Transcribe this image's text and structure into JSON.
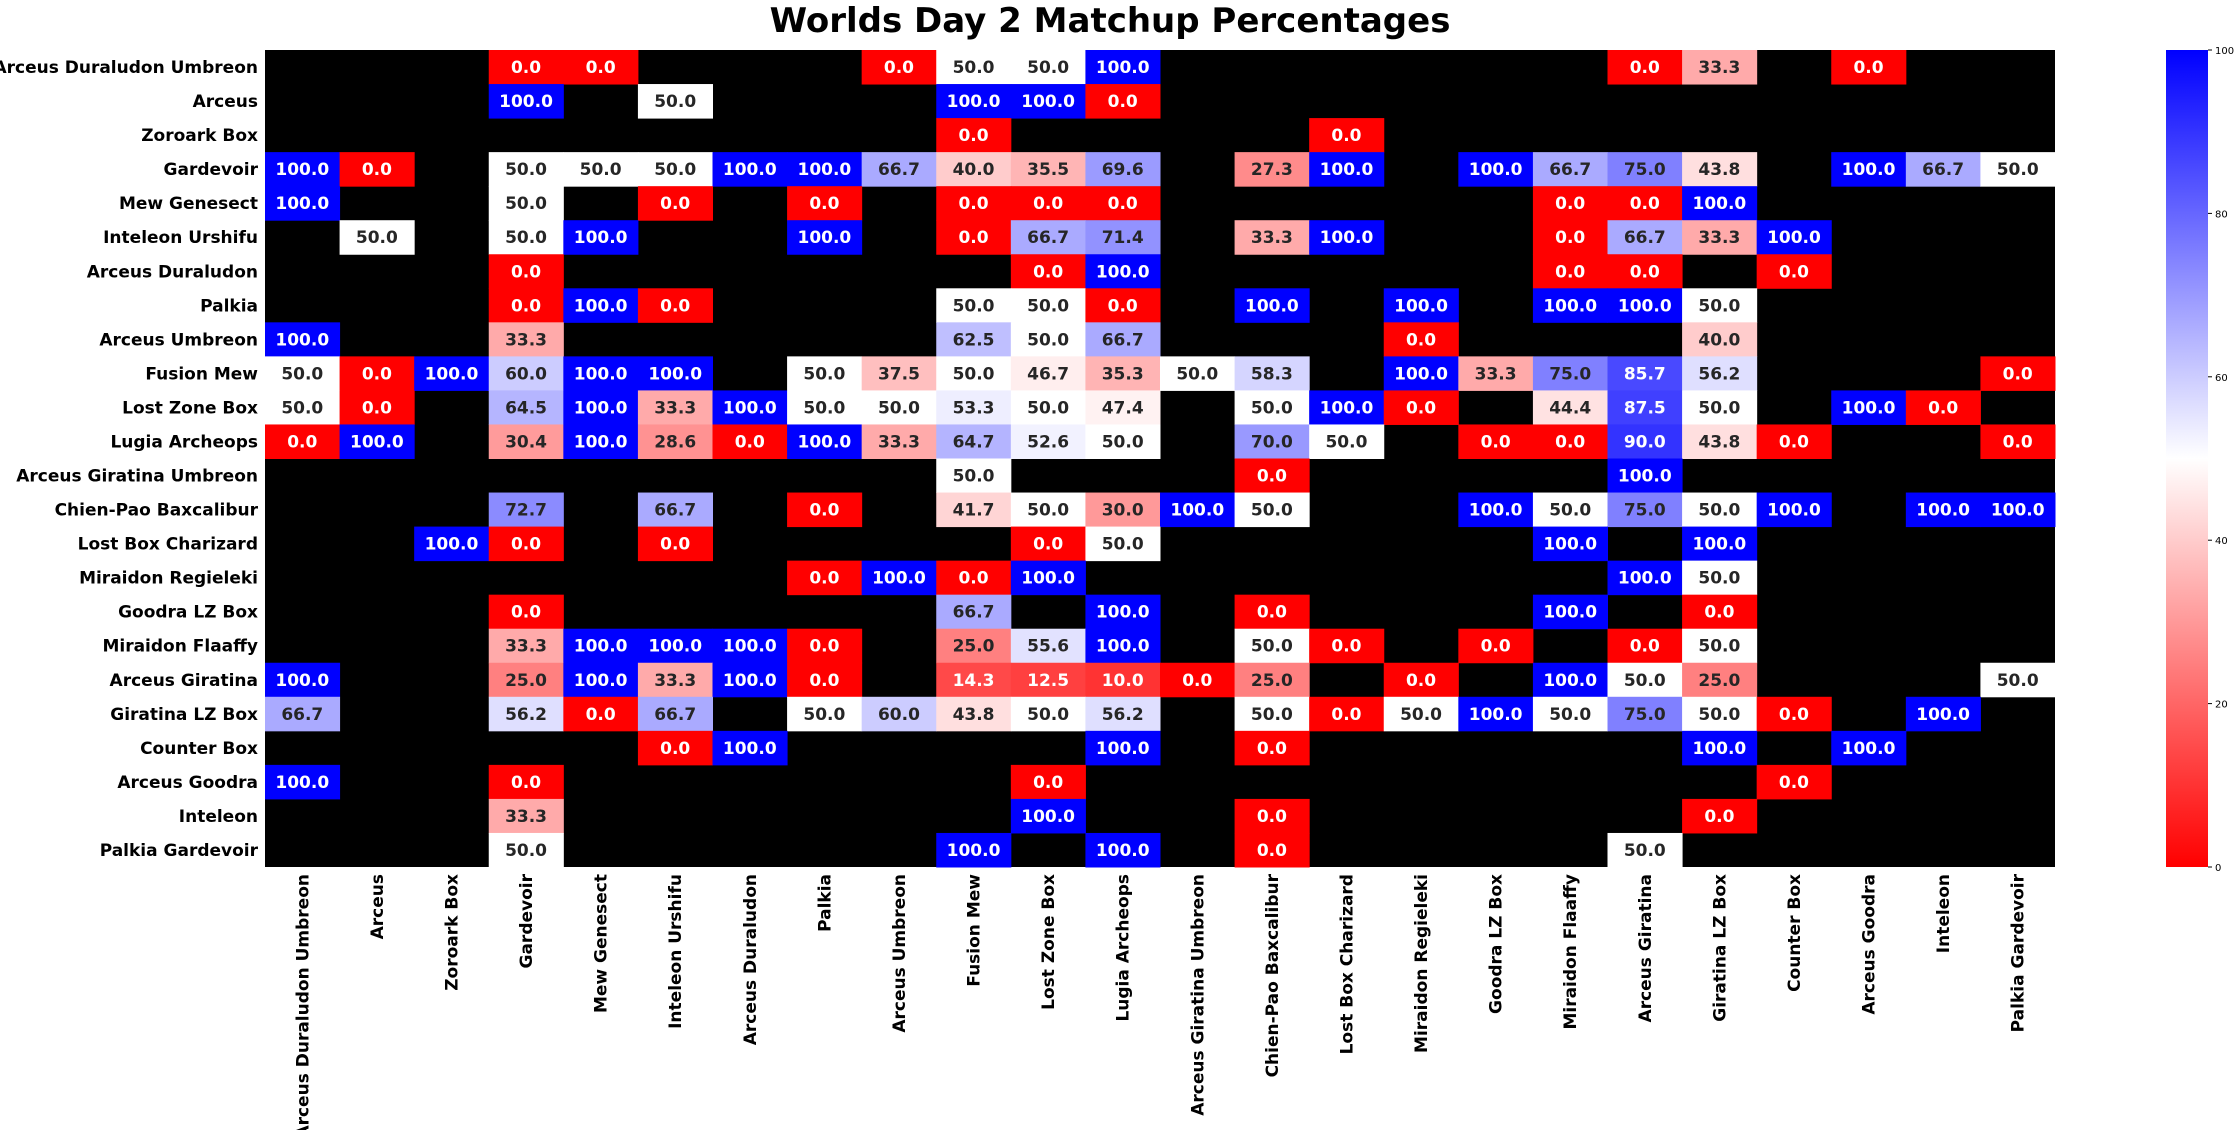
{
  "chart_data": {
    "type": "heatmap",
    "title": "Worlds Day 2 Matchup Percentages",
    "rows": [
      "Arceus Duraludon Umbreon",
      "Arceus",
      "Zoroark Box",
      "Gardevoir",
      "Mew Genesect",
      "Inteleon Urshifu",
      "Arceus Duraludon",
      "Palkia",
      "Arceus Umbreon",
      "Fusion Mew",
      "Lost Zone Box",
      "Lugia Archeops",
      "Arceus Giratina Umbreon",
      "Chien-Pao Baxcalibur",
      "Lost Box Charizard",
      "Miraidon Regieleki",
      "Goodra LZ Box",
      "Miraidon Flaaffy",
      "Arceus Giratina",
      "Giratina LZ Box",
      "Counter Box",
      "Arceus Goodra",
      "Inteleon",
      "Palkia Gardevoir"
    ],
    "columns": [
      "Arceus Duraludon Umbreon",
      "Arceus",
      "Zoroark Box",
      "Gardevoir",
      "Mew Genesect",
      "Inteleon Urshifu",
      "Arceus Duraludon",
      "Palkia",
      "Arceus Umbreon",
      "Fusion Mew",
      "Lost Zone Box",
      "Lugia Archeops",
      "Arceus Giratina Umbreon",
      "Chien-Pao Baxcalibur",
      "Lost Box Charizard",
      "Miraidon Regieleki",
      "Goodra LZ Box",
      "Miraidon Flaaffy",
      "Arceus Giratina",
      "Giratina LZ Box",
      "Counter Box",
      "Arceus Goodra",
      "Inteleon",
      "Palkia Gardevoir"
    ],
    "values": [
      [
        null,
        null,
        null,
        0.0,
        0.0,
        null,
        null,
        null,
        0.0,
        50.0,
        50.0,
        100.0,
        null,
        null,
        null,
        null,
        null,
        null,
        0.0,
        33.3,
        null,
        0.0,
        null,
        null
      ],
      [
        null,
        null,
        null,
        100.0,
        null,
        50.0,
        null,
        null,
        null,
        100.0,
        100.0,
        0.0,
        null,
        null,
        null,
        null,
        null,
        null,
        null,
        null,
        null,
        null,
        null,
        null
      ],
      [
        null,
        null,
        null,
        null,
        null,
        null,
        null,
        null,
        null,
        0.0,
        null,
        null,
        null,
        null,
        0.0,
        null,
        null,
        null,
        null,
        null,
        null,
        null,
        null,
        null
      ],
      [
        100.0,
        0.0,
        null,
        50.0,
        50.0,
        50.0,
        100.0,
        100.0,
        66.7,
        40.0,
        35.5,
        69.6,
        null,
        27.3,
        100.0,
        null,
        100.0,
        66.7,
        75.0,
        43.8,
        null,
        100.0,
        66.7,
        50.0
      ],
      [
        100.0,
        null,
        null,
        50.0,
        null,
        0.0,
        null,
        0.0,
        null,
        0.0,
        0.0,
        0.0,
        null,
        null,
        null,
        null,
        null,
        0.0,
        0.0,
        100.0,
        null,
        null,
        null,
        null
      ],
      [
        null,
        50.0,
        null,
        50.0,
        100.0,
        null,
        null,
        100.0,
        null,
        0.0,
        66.7,
        71.4,
        null,
        33.3,
        100.0,
        null,
        null,
        0.0,
        66.7,
        33.3,
        100.0,
        null,
        null,
        null
      ],
      [
        null,
        null,
        null,
        0.0,
        null,
        null,
        null,
        null,
        null,
        null,
        0.0,
        100.0,
        null,
        null,
        null,
        null,
        null,
        0.0,
        0.0,
        null,
        0.0,
        null,
        null,
        null
      ],
      [
        null,
        null,
        null,
        0.0,
        100.0,
        0.0,
        null,
        null,
        null,
        50.0,
        50.0,
        0.0,
        null,
        100.0,
        null,
        100.0,
        null,
        100.0,
        100.0,
        50.0,
        null,
        null,
        null,
        null
      ],
      [
        100.0,
        null,
        null,
        33.3,
        null,
        null,
        null,
        null,
        null,
        62.5,
        50.0,
        66.7,
        null,
        null,
        null,
        0.0,
        null,
        null,
        null,
        40.0,
        null,
        null,
        null,
        null
      ],
      [
        50.0,
        0.0,
        100.0,
        60.0,
        100.0,
        100.0,
        null,
        50.0,
        37.5,
        50.0,
        46.7,
        35.3,
        50.0,
        58.3,
        null,
        100.0,
        33.3,
        75.0,
        85.7,
        56.2,
        null,
        null,
        null,
        0.0
      ],
      [
        50.0,
        0.0,
        null,
        64.5,
        100.0,
        33.3,
        100.0,
        50.0,
        50.0,
        53.3,
        50.0,
        47.4,
        null,
        50.0,
        100.0,
        0.0,
        null,
        44.4,
        87.5,
        50.0,
        null,
        100.0,
        0.0,
        null
      ],
      [
        0.0,
        100.0,
        null,
        30.4,
        100.0,
        28.6,
        0.0,
        100.0,
        33.3,
        64.7,
        52.6,
        50.0,
        null,
        70.0,
        50.0,
        null,
        0.0,
        0.0,
        90.0,
        43.8,
        0.0,
        null,
        null,
        0.0
      ],
      [
        null,
        null,
        null,
        null,
        null,
        null,
        null,
        null,
        null,
        50.0,
        null,
        null,
        null,
        0.0,
        null,
        null,
        null,
        null,
        100.0,
        null,
        null,
        null,
        null,
        null
      ],
      [
        null,
        null,
        null,
        72.7,
        null,
        66.7,
        null,
        0.0,
        null,
        41.7,
        50.0,
        30.0,
        100.0,
        50.0,
        null,
        null,
        100.0,
        50.0,
        75.0,
        50.0,
        100.0,
        null,
        100.0,
        100.0
      ],
      [
        null,
        null,
        100.0,
        0.0,
        null,
        0.0,
        null,
        null,
        null,
        null,
        0.0,
        50.0,
        null,
        null,
        null,
        null,
        null,
        100.0,
        null,
        100.0,
        null,
        null,
        null,
        null
      ],
      [
        null,
        null,
        null,
        null,
        null,
        null,
        null,
        0.0,
        100.0,
        0.0,
        100.0,
        null,
        null,
        null,
        null,
        null,
        null,
        null,
        100.0,
        50.0,
        null,
        null,
        null,
        null
      ],
      [
        null,
        null,
        null,
        0.0,
        null,
        null,
        null,
        null,
        null,
        66.7,
        null,
        100.0,
        null,
        0.0,
        null,
        null,
        null,
        100.0,
        null,
        0.0,
        null,
        null,
        null,
        null
      ],
      [
        null,
        null,
        null,
        33.3,
        100.0,
        100.0,
        100.0,
        0.0,
        null,
        25.0,
        55.6,
        100.0,
        null,
        50.0,
        0.0,
        null,
        0.0,
        null,
        0.0,
        50.0,
        null,
        null,
        null,
        null
      ],
      [
        100.0,
        null,
        null,
        25.0,
        100.0,
        33.3,
        100.0,
        0.0,
        null,
        14.3,
        12.5,
        10.0,
        0.0,
        25.0,
        null,
        0.0,
        null,
        100.0,
        50.0,
        25.0,
        null,
        null,
        null,
        50.0
      ],
      [
        66.7,
        null,
        null,
        56.2,
        0.0,
        66.7,
        null,
        50.0,
        60.0,
        43.8,
        50.0,
        56.2,
        null,
        50.0,
        0.0,
        50.0,
        100.0,
        50.0,
        75.0,
        50.0,
        0.0,
        null,
        100.0,
        null
      ],
      [
        null,
        null,
        null,
        null,
        null,
        0.0,
        100.0,
        null,
        null,
        null,
        null,
        100.0,
        null,
        0.0,
        null,
        null,
        null,
        null,
        null,
        100.0,
        null,
        100.0,
        null,
        null
      ],
      [
        100.0,
        null,
        null,
        0.0,
        null,
        null,
        null,
        null,
        null,
        null,
        0.0,
        null,
        null,
        null,
        null,
        null,
        null,
        null,
        null,
        null,
        0.0,
        null,
        null,
        null
      ],
      [
        null,
        null,
        null,
        33.3,
        null,
        null,
        null,
        null,
        null,
        null,
        100.0,
        null,
        null,
        0.0,
        null,
        null,
        null,
        null,
        null,
        0.0,
        null,
        null,
        null,
        null
      ],
      [
        null,
        null,
        null,
        50.0,
        null,
        null,
        null,
        null,
        null,
        100.0,
        null,
        100.0,
        null,
        0.0,
        null,
        null,
        null,
        null,
        50.0,
        null,
        null,
        null,
        null,
        null
      ]
    ],
    "missing_color": "#000000",
    "colormap": {
      "low": "#ff0000",
      "mid": "#ffffff",
      "high": "#0000ff"
    },
    "vmin": 0,
    "vmax": 100,
    "colorbar_ticks": [
      0,
      20,
      40,
      60,
      80,
      100
    ],
    "annotation_format": "0.0"
  }
}
